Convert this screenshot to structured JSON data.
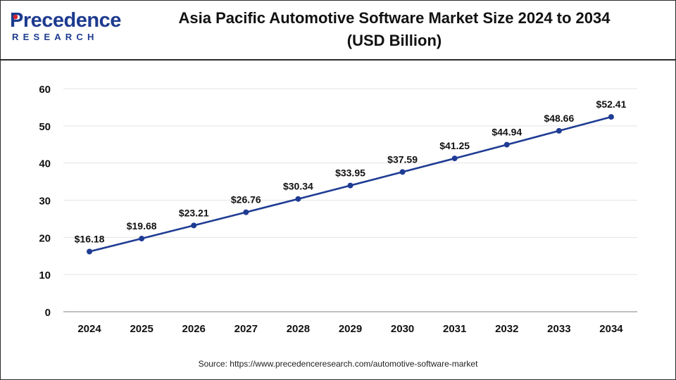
{
  "logo": {
    "line1": "Precedence",
    "line2": "RESEARCH",
    "brand_color": "#1d3b8f",
    "dot_color": "#d8232a"
  },
  "header": {
    "title_line1": "Asia Pacific Automotive Software Market Size 2024 to 2034",
    "title_line2": "(USD Billion)"
  },
  "chart_data": {
    "type": "line",
    "title": "Asia Pacific Automotive Software Market Size 2024 to 2034 (USD Billion)",
    "x": [
      "2024",
      "2025",
      "2026",
      "2027",
      "2028",
      "2029",
      "2030",
      "2031",
      "2032",
      "2033",
      "2034"
    ],
    "values": [
      16.18,
      19.68,
      23.21,
      26.76,
      30.34,
      33.95,
      37.59,
      41.25,
      44.94,
      48.66,
      52.41
    ],
    "data_labels": [
      "$16.18",
      "$19.68",
      "$23.21",
      "$26.76",
      "$30.34",
      "$33.95",
      "$37.59",
      "$41.25",
      "$44.94",
      "$48.66",
      "$52.41"
    ],
    "y_ticks": [
      "0",
      "10",
      "20",
      "30",
      "40",
      "50",
      "60"
    ],
    "ylim": [
      0,
      60
    ],
    "grid": true,
    "legend": "none",
    "line_color": "#1f3c94",
    "xlabel": "",
    "ylabel": ""
  },
  "footer": {
    "source": "Source: https://www.precedenceresearch.com/automotive-software-market"
  }
}
